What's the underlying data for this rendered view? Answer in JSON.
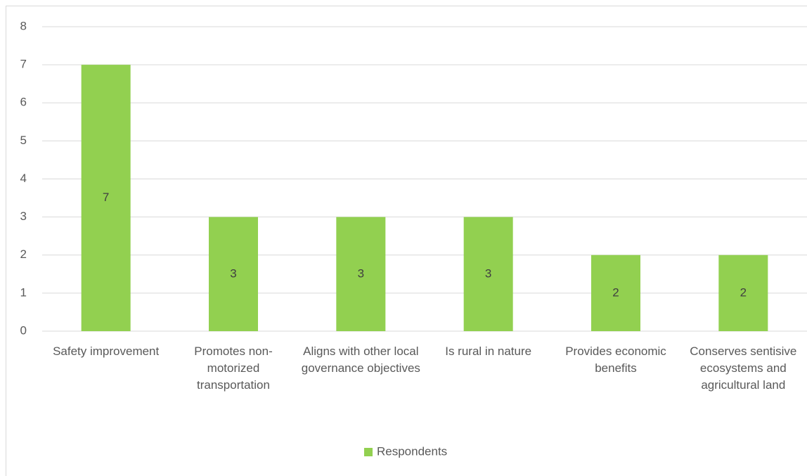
{
  "chart_data": {
    "type": "bar",
    "categories": [
      "Safety improvement",
      "Promotes non-motorized transportation",
      "Aligns with other local governance objectives",
      "Is rural in nature",
      "Provides economic benefits",
      "Conserves sentisive ecosystems and agricultural land"
    ],
    "series": [
      {
        "name": "Respondents",
        "color": "#92d050",
        "values": [
          7,
          3,
          3,
          3,
          2,
          2
        ]
      }
    ],
    "ylim": [
      0,
      8
    ],
    "yticks": [
      0,
      1,
      2,
      3,
      4,
      5,
      6,
      7,
      8
    ],
    "grid": true,
    "data_labels": true,
    "legend": "bottom"
  }
}
